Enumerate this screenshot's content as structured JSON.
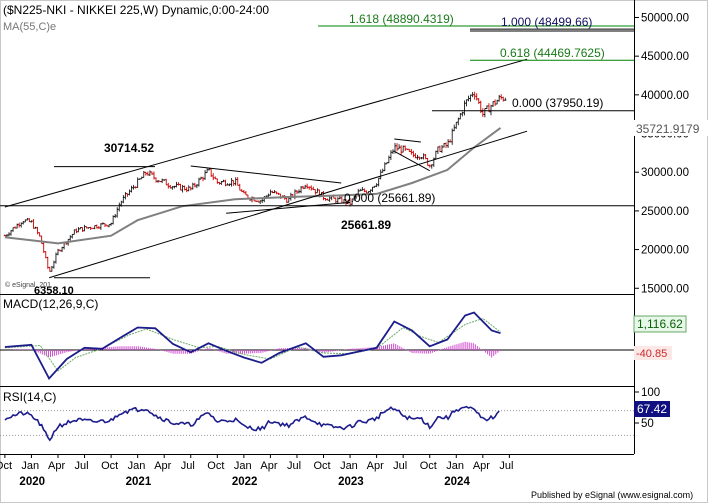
{
  "price_panel": {
    "title": "($N225-NKI - NIKKEI 225,W) Dynamic,0:00-24:00",
    "ma_label": "MA(55,C)e",
    "watermark": "© eSignal, 201",
    "hidden_low_label": "6358.10"
  },
  "macd_panel": {
    "title": "MACD(12,26,9,C)",
    "value_tag": "1,116.62",
    "value_tag2": "-40.85"
  },
  "rsi_panel": {
    "title": "RSI(14,C)",
    "value_tag": "67.42"
  },
  "footer": {
    "published": "Published by eSignal (www.esignal.com)"
  },
  "colors": {
    "up": "#1a1a1a",
    "down": "#cc0000",
    "ma": "#808080",
    "fib": "#008000",
    "fib_label": "#1a7a1a",
    "fib_top": "#101060",
    "macd": "#1c1c8c",
    "signal": "#6aa86a",
    "hist": "#d24cd2",
    "rsi": "#1c1c8c",
    "tag_green_bg": "#e8f8e8",
    "tag_red_bg": "#fde8e8"
  },
  "chart_data": [
    {
      "type": "candlestick",
      "title": "($N225-NKI - NIKKEI 225,W) Dynamic,0:00-24:00",
      "timeframe": "weekly",
      "ylim": [
        14000,
        52000
      ],
      "y_ticks": [
        15000,
        20000,
        25000,
        30000,
        35000,
        40000,
        45000,
        50000
      ],
      "y_tick_labels": [
        "15000.00",
        "20000.00",
        "25000.00",
        "30000.00",
        "35000.00",
        "40000.00",
        "45000.00",
        "50000.00"
      ],
      "x_month_labels": [
        "Oct",
        "Jan",
        "Apr",
        "Jul",
        "Oct",
        "Jan",
        "Apr",
        "Jul",
        "Oct",
        "Jan",
        "Apr",
        "Jul",
        "Oct",
        "Jan",
        "Apr",
        "Jul",
        "Oct",
        "Jan",
        "Apr",
        "Jul"
      ],
      "x_year_labels": [
        "2020",
        "2021",
        "2022",
        "2023",
        "2024"
      ],
      "x_start": "2019-10",
      "x_end": "2024-07",
      "price_path": [
        [
          "2019-10",
          21800
        ],
        [
          "2019-12",
          23800
        ],
        [
          "2020-01",
          23500
        ],
        [
          "2020-02",
          21500
        ],
        [
          "2020-03",
          17000
        ],
        [
          "2020-04",
          19800
        ],
        [
          "2020-06",
          22500
        ],
        [
          "2020-08",
          23000
        ],
        [
          "2020-10",
          23400
        ],
        [
          "2020-11",
          26000
        ],
        [
          "2020-12",
          27400
        ],
        [
          "2021-02",
          30000
        ],
        [
          "2021-03",
          29200
        ],
        [
          "2021-05",
          28200
        ],
        [
          "2021-07",
          27800
        ],
        [
          "2021-09",
          30200
        ],
        [
          "2021-10",
          28700
        ],
        [
          "2021-12",
          28800
        ],
        [
          "2022-01",
          27000
        ],
        [
          "2022-03",
          26300
        ],
        [
          "2022-04",
          27500
        ],
        [
          "2022-06",
          26400
        ],
        [
          "2022-08",
          28600
        ],
        [
          "2022-10",
          26800
        ],
        [
          "2022-12",
          26300
        ],
        [
          "2023-01",
          26000
        ],
        [
          "2023-02",
          27500
        ],
        [
          "2023-03",
          27600
        ],
        [
          "2023-04",
          28700
        ],
        [
          "2023-05",
          30900
        ],
        [
          "2023-06",
          33200
        ],
        [
          "2023-07",
          32900
        ],
        [
          "2023-08",
          32200
        ],
        [
          "2023-09",
          32300
        ],
        [
          "2023-10",
          30900
        ],
        [
          "2023-11",
          33000
        ],
        [
          "2023-12",
          33500
        ],
        [
          "2024-01",
          36200
        ],
        [
          "2024-02",
          38900
        ],
        [
          "2024-03",
          40500
        ],
        [
          "2024-04",
          37500
        ],
        [
          "2024-05",
          38700
        ],
        [
          "2024-06",
          39600
        ]
      ],
      "ma55_path": [
        [
          "2019-10",
          21600
        ],
        [
          "2020-04",
          20800
        ],
        [
          "2020-10",
          21800
        ],
        [
          "2021-01",
          23800
        ],
        [
          "2021-06",
          25600
        ],
        [
          "2021-12",
          26500
        ],
        [
          "2022-06",
          26800
        ],
        [
          "2022-12",
          27000
        ],
        [
          "2023-04",
          27200
        ],
        [
          "2023-08",
          28600
        ],
        [
          "2023-12",
          30300
        ],
        [
          "2024-03",
          33200
        ],
        [
          "2024-06",
          35722
        ]
      ],
      "annotations": {
        "peak_2021": {
          "value": 30714.52,
          "label": "30714.52",
          "date": "2021-02"
        },
        "low_2023": {
          "value": 25661.89,
          "label": "25661.89",
          "date": "2023-01"
        },
        "low_2020": {
          "value": 16358.19,
          "date": "2020-03"
        }
      },
      "fib_levels": [
        {
          "label": "1.618 (48890.4319)",
          "value": 48890.4319,
          "kind": "green"
        },
        {
          "label": "1.000 (48499.66)",
          "value": 48499.66,
          "kind": "black"
        },
        {
          "label": "0.618 (44469.7625)",
          "value": 44469.7625,
          "kind": "green"
        },
        {
          "label": "0.000 (37950.19)",
          "value": 37950.19,
          "kind": "black"
        },
        {
          "label": "0.000 (25661.89)",
          "value": 25661.89,
          "kind": "black"
        }
      ],
      "ma_last_value": {
        "label": "35721.9179",
        "value": 35721.9179
      },
      "last_close": {
        "label": "40000.00",
        "value": 40000
      },
      "trendlines": [
        {
          "name": "upper-channel",
          "from": [
            "2019-10",
            25500
          ],
          "to": [
            "2024-09",
            44600
          ]
        },
        {
          "name": "lower-channel",
          "from": [
            "2020-03",
            16358
          ],
          "to": [
            "2024-09",
            35300
          ]
        },
        {
          "name": "triangle-top",
          "from": [
            "2021-07",
            30800
          ],
          "to": [
            "2022-12",
            28600
          ]
        },
        {
          "name": "triangle-bottom",
          "from": [
            "2021-11",
            24700
          ],
          "to": [
            "2023-01",
            26100
          ]
        },
        {
          "name": "flag-top",
          "from": [
            "2023-06",
            34300
          ],
          "to": [
            "2023-09",
            33900
          ]
        },
        {
          "name": "flag-bottom",
          "from": [
            "2023-06",
            32700
          ],
          "to": [
            "2023-10",
            30200
          ]
        }
      ]
    },
    {
      "type": "line",
      "title": "MACD(12,26,9,C)",
      "ylim": [
        -2400,
        3200
      ],
      "y_ticks": [],
      "zero_line": 0,
      "series": [
        {
          "name": "MACD",
          "points": [
            [
              "2019-10",
              200
            ],
            [
              "2020-01",
              350
            ],
            [
              "2020-03",
              -1900
            ],
            [
              "2020-05",
              -600
            ],
            [
              "2020-07",
              150
            ],
            [
              "2020-09",
              80
            ],
            [
              "2020-11",
              800
            ],
            [
              "2021-01",
              1500
            ],
            [
              "2021-03",
              1450
            ],
            [
              "2021-05",
              400
            ],
            [
              "2021-07",
              -150
            ],
            [
              "2021-09",
              450
            ],
            [
              "2021-11",
              -50
            ],
            [
              "2022-01",
              -500
            ],
            [
              "2022-03",
              -850
            ],
            [
              "2022-05",
              -200
            ],
            [
              "2022-08",
              450
            ],
            [
              "2022-10",
              -450
            ],
            [
              "2022-12",
              -350
            ],
            [
              "2023-02",
              -100
            ],
            [
              "2023-04",
              150
            ],
            [
              "2023-06",
              1900
            ],
            [
              "2023-08",
              1300
            ],
            [
              "2023-10",
              250
            ],
            [
              "2023-12",
              700
            ],
            [
              "2024-02",
              2300
            ],
            [
              "2024-03",
              2500
            ],
            [
              "2024-05",
              1300
            ],
            [
              "2024-06",
              1117
            ]
          ]
        },
        {
          "name": "Signal",
          "points": [
            [
              "2019-10",
              150
            ],
            [
              "2020-02",
              300
            ],
            [
              "2020-04",
              -1400
            ],
            [
              "2020-06",
              -500
            ],
            [
              "2020-09",
              100
            ],
            [
              "2020-12",
              1000
            ],
            [
              "2021-02",
              1400
            ],
            [
              "2021-05",
              700
            ],
            [
              "2021-08",
              150
            ],
            [
              "2021-10",
              250
            ],
            [
              "2022-01",
              -300
            ],
            [
              "2022-04",
              -600
            ],
            [
              "2022-07",
              200
            ],
            [
              "2022-10",
              -200
            ],
            [
              "2023-01",
              -250
            ],
            [
              "2023-04",
              100
            ],
            [
              "2023-07",
              1500
            ],
            [
              "2023-09",
              900
            ],
            [
              "2023-11",
              500
            ],
            [
              "2024-02",
              1700
            ],
            [
              "2024-04",
              2100
            ],
            [
              "2024-06",
              1200
            ]
          ]
        },
        {
          "name": "Histogram",
          "points": [
            [
              "2019-11",
              50
            ],
            [
              "2020-01",
              40
            ],
            [
              "2020-03",
              -500
            ],
            [
              "2020-05",
              -150
            ],
            [
              "2020-07",
              60
            ],
            [
              "2020-11",
              250
            ],
            [
              "2021-01",
              250
            ],
            [
              "2021-03",
              80
            ],
            [
              "2021-05",
              -250
            ],
            [
              "2021-07",
              -250
            ],
            [
              "2021-09",
              150
            ],
            [
              "2021-11",
              -250
            ],
            [
              "2022-01",
              -250
            ],
            [
              "2022-03",
              -200
            ],
            [
              "2022-05",
              120
            ],
            [
              "2022-08",
              160
            ],
            [
              "2022-10",
              -180
            ],
            [
              "2023-01",
              80
            ],
            [
              "2023-04",
              200
            ],
            [
              "2023-06",
              450
            ],
            [
              "2023-08",
              -200
            ],
            [
              "2023-10",
              -250
            ],
            [
              "2023-12",
              200
            ],
            [
              "2024-02",
              550
            ],
            [
              "2024-03",
              450
            ],
            [
              "2024-05",
              -500
            ],
            [
              "2024-06",
              -41
            ]
          ]
        }
      ],
      "last_values": {
        "macd": 1116.62,
        "histogram": -40.85
      }
    },
    {
      "type": "line",
      "title": "RSI(14,C)",
      "ylim": [
        0,
        100
      ],
      "y_ticks": [
        50,
        100
      ],
      "reference_lines": [
        30,
        70
      ],
      "series": [
        {
          "name": "RSI",
          "points": [
            [
              "2019-10",
              58
            ],
            [
              "2019-12",
              66
            ],
            [
              "2020-01",
              62
            ],
            [
              "2020-02",
              48
            ],
            [
              "2020-03",
              22
            ],
            [
              "2020-04",
              45
            ],
            [
              "2020-06",
              55
            ],
            [
              "2020-08",
              52
            ],
            [
              "2020-10",
              54
            ],
            [
              "2020-11",
              67
            ],
            [
              "2020-12",
              70
            ],
            [
              "2021-02",
              74
            ],
            [
              "2021-03",
              62
            ],
            [
              "2021-05",
              50
            ],
            [
              "2021-07",
              47
            ],
            [
              "2021-09",
              67
            ],
            [
              "2021-10",
              52
            ],
            [
              "2021-12",
              56
            ],
            [
              "2022-01",
              44
            ],
            [
              "2022-03",
              40
            ],
            [
              "2022-04",
              53
            ],
            [
              "2022-06",
              46
            ],
            [
              "2022-08",
              60
            ],
            [
              "2022-10",
              46
            ],
            [
              "2022-12",
              42
            ],
            [
              "2023-01",
              44
            ],
            [
              "2023-02",
              52
            ],
            [
              "2023-03",
              53
            ],
            [
              "2023-04",
              58
            ],
            [
              "2023-05",
              70
            ],
            [
              "2023-06",
              73
            ],
            [
              "2023-07",
              62
            ],
            [
              "2023-08",
              56
            ],
            [
              "2023-09",
              58
            ],
            [
              "2023-10",
              44
            ],
            [
              "2023-11",
              60
            ],
            [
              "2023-12",
              58
            ],
            [
              "2024-01",
              72
            ],
            [
              "2024-02",
              75
            ],
            [
              "2024-03",
              71
            ],
            [
              "2024-04",
              56
            ],
            [
              "2024-05",
              58
            ],
            [
              "2024-06",
              67.42
            ]
          ]
        }
      ],
      "last_value": 67.42
    }
  ]
}
